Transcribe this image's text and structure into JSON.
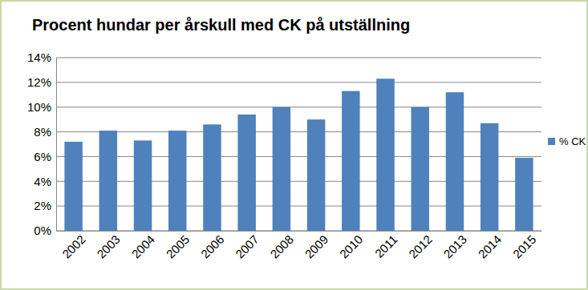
{
  "chart_data": {
    "type": "bar",
    "title": "Procent  hundar per årskull med CK på utställning",
    "categories": [
      "2002",
      "2003",
      "2004",
      "2005",
      "2006",
      "2007",
      "2008",
      "2009",
      "2010",
      "2011",
      "2012",
      "2013",
      "2014",
      "2015"
    ],
    "series": [
      {
        "name": "% CK",
        "color": "#4f81bd",
        "values": [
          7.2,
          8.1,
          7.3,
          8.1,
          8.6,
          9.4,
          10.0,
          9.0,
          11.3,
          12.3,
          10.0,
          11.2,
          8.7,
          5.9
        ]
      }
    ],
    "ylim": [
      0,
      14
    ],
    "yticks": [
      {
        "value": 0,
        "label": "0%"
      },
      {
        "value": 2,
        "label": "2%"
      },
      {
        "value": 4,
        "label": "4%"
      },
      {
        "value": 6,
        "label": "6%"
      },
      {
        "value": 8,
        "label": "8%"
      },
      {
        "value": 10,
        "label": "10%"
      },
      {
        "value": 12,
        "label": "12%"
      },
      {
        "value": 14,
        "label": "14%"
      }
    ],
    "grid": true,
    "legend": "right"
  }
}
